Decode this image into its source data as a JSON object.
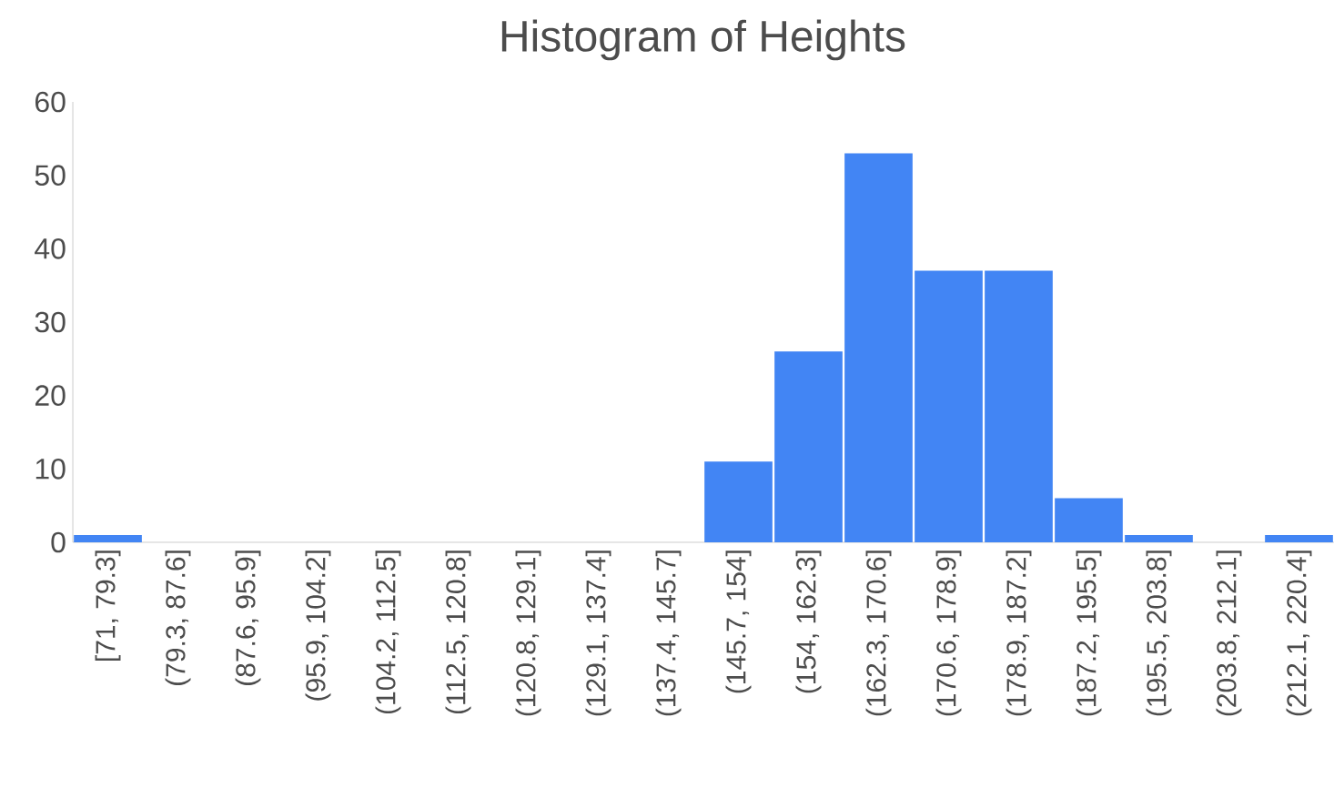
{
  "chart_data": {
    "type": "bar",
    "title": "Histogram of Heights",
    "categories": [
      "[71, 79.3]",
      "(79.3, 87.6]",
      "(87.6, 95.9]",
      "(95.9, 104.2]",
      "(104.2, 112.5]",
      "(112.5, 120.8]",
      "(120.8, 129.1]",
      "(129.1, 137.4]",
      "(137.4, 145.7]",
      "(145.7, 154]",
      "(154, 162.3]",
      "(162.3, 170.6]",
      "(170.6, 178.9]",
      "(178.9, 187.2]",
      "(187.2, 195.5]",
      "(195.5, 203.8]",
      "(203.8, 212.1]",
      "(212.1, 220.4]"
    ],
    "values": [
      1,
      0,
      0,
      0,
      0,
      0,
      0,
      0,
      0,
      11,
      26,
      53,
      37,
      37,
      6,
      1,
      0,
      1
    ],
    "color": "#4285f4",
    "ylim": [
      0,
      60
    ],
    "yticks": [
      0,
      10,
      20,
      30,
      40,
      50,
      60
    ],
    "grid": false
  }
}
